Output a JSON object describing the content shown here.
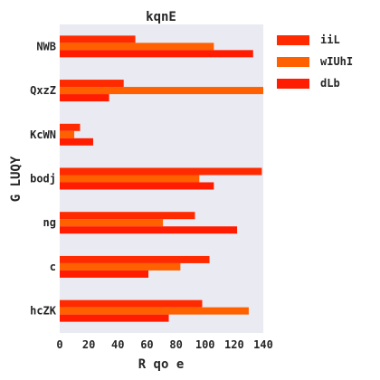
{
  "chart_data": {
    "type": "bar",
    "orientation": "horizontal",
    "title": "kqnE",
    "xlabel": "R qo e",
    "ylabel": "G LUQY",
    "categories": [
      "NWB",
      "QxzZ",
      "KcWN",
      "bodj",
      "ng",
      "c",
      "hcZK"
    ],
    "series": [
      {
        "name": "iiL",
        "color": "#ff2a00",
        "values": [
          52,
          44,
          14,
          139,
          93,
          103,
          98
        ]
      },
      {
        "name": "wIUhI",
        "color": "#ff6000",
        "values": [
          106,
          140,
          10,
          96,
          71,
          83,
          130
        ]
      },
      {
        "name": "dLb",
        "color": "#ff1c00",
        "values": [
          133,
          34,
          23,
          106,
          122,
          61,
          75
        ]
      }
    ],
    "xlim": [
      0,
      140
    ],
    "xticks": [
      0,
      20,
      40,
      60,
      80,
      100,
      120,
      140
    ],
    "grid": false,
    "legend_position": "top-right",
    "background": "#eaeaf2"
  }
}
